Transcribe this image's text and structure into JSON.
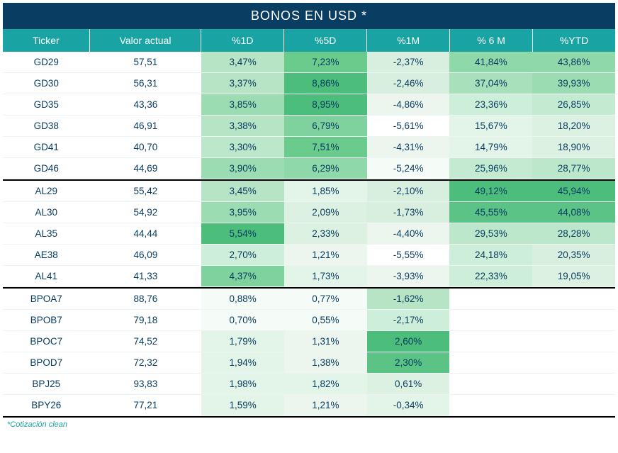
{
  "title": "BONOS EN USD *",
  "footnote": "*Cotización clean",
  "columns": [
    "Ticker",
    "Valor actual",
    "%1D",
    "%5D",
    "%1M",
    "% 6 M",
    "%YTD"
  ],
  "palette": {
    "title_bg": "#0a3d62",
    "header_bg": "#1aa3a3",
    "text": "#0a3d62"
  },
  "heat_scale": {
    "neg_max": "#ffffff",
    "zero": "#f2faf5",
    "pos_low": "#e3f4e8",
    "pos_mid": "#b7e4c5",
    "pos_high": "#7fd19d",
    "pos_top": "#4dbd7c"
  },
  "groups": [
    {
      "rows": [
        {
          "ticker": "GD29",
          "valor": "57,51",
          "d1": "3,47%",
          "d5": "7,23%",
          "m1": "-2,37%",
          "m6": "41,84%",
          "ytd": "43,86%",
          "bg": {
            "d1": "#b7e4c5",
            "d5": "#6acb8c",
            "m1": "#d8efe0",
            "m6": "#8fd8a9",
            "ytd": "#8fd8a9"
          }
        },
        {
          "ticker": "GD30",
          "valor": "56,31",
          "d1": "3,37%",
          "d5": "8,86%",
          "m1": "-2,46%",
          "m6": "37,04%",
          "ytd": "39,93%",
          "bg": {
            "d1": "#b7e4c5",
            "d5": "#4dbd7c",
            "m1": "#d8efe0",
            "m6": "#a8e0bb",
            "ytd": "#9cdcb2"
          }
        },
        {
          "ticker": "GD35",
          "valor": "43,36",
          "d1": "3,85%",
          "d5": "8,95%",
          "m1": "-4,86%",
          "m6": "23,36%",
          "ytd": "26,85%",
          "bg": {
            "d1": "#9cdcb2",
            "d5": "#4dbd7c",
            "m1": "#ecf6ef",
            "m6": "#cdeed8",
            "ytd": "#c4ebd1"
          }
        },
        {
          "ticker": "GD38",
          "valor": "46,91",
          "d1": "3,38%",
          "d5": "6,79%",
          "m1": "-5,61%",
          "m6": "15,67%",
          "ytd": "18,20%",
          "bg": {
            "d1": "#b7e4c5",
            "d5": "#7fd19d",
            "m1": "#ffffff",
            "m6": "#e3f4e8",
            "ytd": "#dcf1e2"
          }
        },
        {
          "ticker": "GD41",
          "valor": "40,70",
          "d1": "3,30%",
          "d5": "7,51%",
          "m1": "-4,31%",
          "m6": "14,79%",
          "ytd": "18,90%",
          "bg": {
            "d1": "#bde7ca",
            "d5": "#6acb8c",
            "m1": "#ecf6ef",
            "m6": "#e3f4e8",
            "ytd": "#dcf1e2"
          }
        },
        {
          "ticker": "GD46",
          "valor": "44,69",
          "d1": "3,90%",
          "d5": "6,29%",
          "m1": "-5,24%",
          "m6": "25,96%",
          "ytd": "28,77%",
          "bg": {
            "d1": "#9cdcb2",
            "d5": "#8fd8a9",
            "m1": "#f5fbf7",
            "m6": "#c4ebd1",
            "ytd": "#bde7ca"
          }
        }
      ]
    },
    {
      "rows": [
        {
          "ticker": "AL29",
          "valor": "55,42",
          "d1": "3,45%",
          "d5": "1,85%",
          "m1": "-2,10%",
          "m6": "49,12%",
          "ytd": "45,94%",
          "bg": {
            "d1": "#b7e4c5",
            "d5": "#e3f4e8",
            "m1": "#d8efe0",
            "m6": "#4dbd7c",
            "ytd": "#4dbd7c"
          }
        },
        {
          "ticker": "AL30",
          "valor": "54,92",
          "d1": "3,95%",
          "d5": "2,09%",
          "m1": "-1,73%",
          "m6": "45,55%",
          "ytd": "44,08%",
          "bg": {
            "d1": "#9cdcb2",
            "d5": "#dcf1e2",
            "m1": "#d8efe0",
            "m6": "#5cc386",
            "ytd": "#5cc386"
          }
        },
        {
          "ticker": "AL35",
          "valor": "44,44",
          "d1": "5,54%",
          "d5": "2,33%",
          "m1": "-4,40%",
          "m6": "29,53%",
          "ytd": "28,28%",
          "bg": {
            "d1": "#4dbd7c",
            "d5": "#dcf1e2",
            "m1": "#ecf6ef",
            "m6": "#bde7ca",
            "ytd": "#bde7ca"
          }
        },
        {
          "ticker": "AE38",
          "valor": "46,09",
          "d1": "2,70%",
          "d5": "1,21%",
          "m1": "-5,55%",
          "m6": "24,18%",
          "ytd": "20,35%",
          "bg": {
            "d1": "#cdeed8",
            "d5": "#ecf6ef",
            "m1": "#ffffff",
            "m6": "#cdeed8",
            "ytd": "#d8efe0"
          }
        },
        {
          "ticker": "AL41",
          "valor": "41,33",
          "d1": "4,37%",
          "d5": "1,73%",
          "m1": "-3,93%",
          "m6": "22,33%",
          "ytd": "19,05%",
          "bg": {
            "d1": "#7fd19d",
            "d5": "#e3f4e8",
            "m1": "#ecf6ef",
            "m6": "#cdeed8",
            "ytd": "#dcf1e2"
          }
        }
      ]
    },
    {
      "rows": [
        {
          "ticker": "BPOA7",
          "valor": "88,76",
          "d1": "0,88%",
          "d5": "0,77%",
          "m1": "-1,62%",
          "m6": "",
          "ytd": "",
          "bg": {
            "d1": "#f5fbf7",
            "d5": "#f5fbf7",
            "m1": "#b7e4c5",
            "m6": "#ffffff",
            "ytd": "#ffffff"
          }
        },
        {
          "ticker": "BPOB7",
          "valor": "79,18",
          "d1": "0,70%",
          "d5": "0,55%",
          "m1": "-2,17%",
          "m6": "",
          "ytd": "",
          "bg": {
            "d1": "#f5fbf7",
            "d5": "#f5fbf7",
            "m1": "#cdeed8",
            "m6": "#ffffff",
            "ytd": "#ffffff"
          }
        },
        {
          "ticker": "BPOC7",
          "valor": "74,52",
          "d1": "1,79%",
          "d5": "1,31%",
          "m1": "2,60%",
          "m6": "",
          "ytd": "",
          "bg": {
            "d1": "#e3f4e8",
            "d5": "#ecf6ef",
            "m1": "#4dbd7c",
            "m6": "#ffffff",
            "ytd": "#ffffff"
          }
        },
        {
          "ticker": "BPOD7",
          "valor": "72,32",
          "d1": "1,94%",
          "d5": "1,38%",
          "m1": "2,30%",
          "m6": "",
          "ytd": "",
          "bg": {
            "d1": "#e3f4e8",
            "d5": "#ecf6ef",
            "m1": "#5cc386",
            "m6": "#ffffff",
            "ytd": "#ffffff"
          }
        },
        {
          "ticker": "BPJ25",
          "valor": "93,83",
          "d1": "1,98%",
          "d5": "1,82%",
          "m1": "0,61%",
          "m6": "",
          "ytd": "",
          "bg": {
            "d1": "#e3f4e8",
            "d5": "#e3f4e8",
            "m1": "#dcf1e2",
            "m6": "#ffffff",
            "ytd": "#ffffff"
          }
        },
        {
          "ticker": "BPY26",
          "valor": "77,21",
          "d1": "1,59%",
          "d5": "1,21%",
          "m1": "-0,34%",
          "m6": "",
          "ytd": "",
          "bg": {
            "d1": "#e3f4e8",
            "d5": "#ecf6ef",
            "m1": "#e3f4e8",
            "m6": "#ffffff",
            "ytd": "#ffffff"
          }
        }
      ]
    }
  ]
}
